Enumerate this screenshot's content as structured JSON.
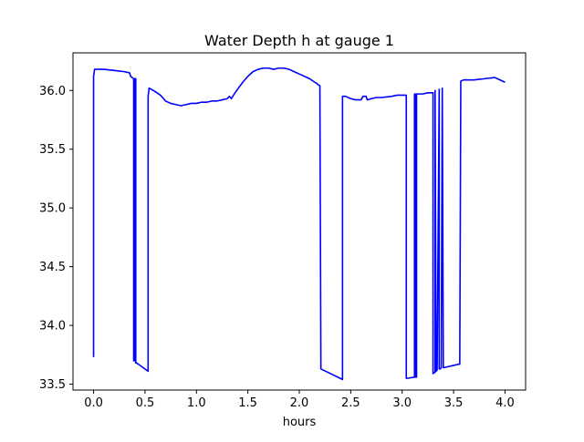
{
  "chart_data": {
    "type": "line",
    "title": "Water Depth h at gauge 1",
    "xlabel": "hours",
    "ylabel": "",
    "xlim": [
      -0.2,
      4.2
    ],
    "ylim": [
      33.45,
      36.32
    ],
    "xticks": [
      0.0,
      0.5,
      1.0,
      1.5,
      2.0,
      2.5,
      3.0,
      3.5,
      4.0
    ],
    "xtick_labels": [
      "0.0",
      "0.5",
      "1.0",
      "1.5",
      "2.0",
      "2.5",
      "3.0",
      "3.5",
      "4.0"
    ],
    "yticks": [
      33.5,
      34.0,
      34.5,
      35.0,
      35.5,
      36.0
    ],
    "ytick_labels": [
      "33.5",
      "34.0",
      "34.5",
      "35.0",
      "35.5",
      "36.0"
    ],
    "grid": false,
    "legend": "none",
    "series": [
      {
        "color": "#0000ff",
        "x": [
          0.0,
          0.0,
          0.01,
          0.1,
          0.2,
          0.3,
          0.35,
          0.36,
          0.39,
          0.39,
          0.4,
          0.4,
          0.41,
          0.41,
          0.42,
          0.53,
          0.53,
          0.54,
          0.6,
          0.65,
          0.68,
          0.7,
          0.75,
          0.8,
          0.85,
          0.9,
          0.95,
          1.0,
          1.05,
          1.1,
          1.15,
          1.2,
          1.25,
          1.3,
          1.32,
          1.34,
          1.36,
          1.4,
          1.45,
          1.5,
          1.55,
          1.6,
          1.65,
          1.7,
          1.75,
          1.8,
          1.85,
          1.9,
          1.95,
          2.0,
          2.05,
          2.1,
          2.15,
          2.17,
          2.18,
          2.2,
          2.21,
          2.42,
          2.42,
          2.45,
          2.5,
          2.55,
          2.6,
          2.62,
          2.63,
          2.65,
          2.66,
          2.7,
          2.75,
          2.8,
          2.9,
          2.95,
          3.0,
          3.04,
          3.04,
          3.05,
          3.12,
          3.12,
          3.13,
          3.13,
          3.14,
          3.14,
          3.15,
          3.2,
          3.25,
          3.3,
          3.3,
          3.31,
          3.32,
          3.32,
          3.33,
          3.34,
          3.36,
          3.36,
          3.37,
          3.38,
          3.39,
          3.4,
          3.45,
          3.5,
          3.55,
          3.56,
          3.57,
          3.6,
          3.7,
          3.8,
          3.9,
          3.95,
          4.0
        ],
        "y": [
          33.73,
          36.12,
          36.18,
          36.18,
          36.17,
          36.16,
          36.15,
          36.12,
          36.1,
          33.7,
          33.7,
          36.1,
          36.1,
          33.68,
          33.68,
          33.61,
          35.95,
          36.02,
          35.99,
          35.96,
          35.93,
          35.91,
          35.89,
          35.88,
          35.87,
          35.88,
          35.89,
          35.89,
          35.9,
          35.9,
          35.91,
          35.91,
          35.92,
          35.93,
          35.95,
          35.93,
          35.96,
          36.01,
          36.07,
          36.12,
          36.16,
          36.18,
          36.19,
          36.19,
          36.18,
          36.19,
          36.19,
          36.18,
          36.16,
          36.14,
          36.12,
          36.1,
          36.07,
          36.06,
          36.05,
          36.04,
          33.63,
          33.54,
          35.95,
          35.95,
          35.93,
          35.92,
          35.92,
          35.95,
          35.95,
          35.95,
          35.92,
          35.93,
          35.94,
          35.94,
          35.95,
          35.96,
          35.96,
          35.96,
          33.55,
          33.55,
          33.56,
          35.97,
          35.97,
          33.56,
          33.56,
          35.97,
          35.97,
          35.97,
          35.98,
          35.98,
          33.59,
          33.6,
          33.6,
          36.0,
          33.61,
          33.62,
          36.01,
          33.63,
          33.63,
          33.64,
          36.02,
          33.64,
          33.65,
          33.66,
          33.67,
          33.67,
          36.08,
          36.09,
          36.09,
          36.1,
          36.11,
          36.09,
          36.07
        ]
      }
    ]
  }
}
